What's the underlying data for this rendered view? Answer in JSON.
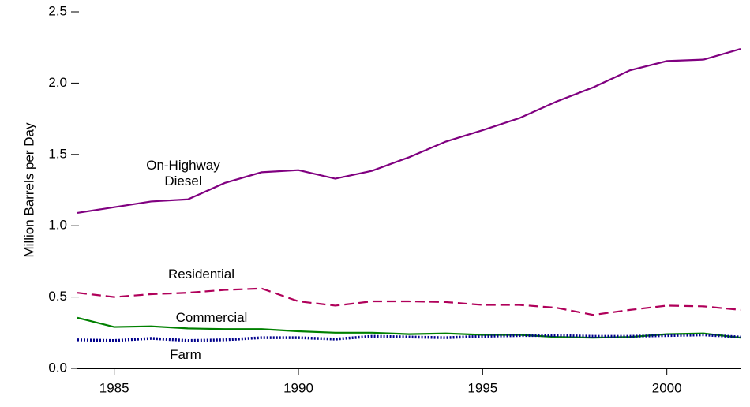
{
  "chart_data": {
    "type": "line",
    "y_label": "Million Barrels per Day",
    "x": [
      1984,
      1985,
      1986,
      1987,
      1988,
      1989,
      1990,
      1991,
      1992,
      1993,
      1994,
      1995,
      1996,
      1997,
      1998,
      1999,
      2000,
      2001,
      2002
    ],
    "xlim": [
      1984,
      2002
    ],
    "xticks": [
      1985,
      1990,
      1995,
      2000
    ],
    "ylim": [
      0,
      2.5
    ],
    "yticks": [
      {
        "value": 0,
        "label": "0.0"
      },
      0.5,
      {
        "value": 1,
        "label": "1.0"
      },
      1.5,
      {
        "value": 2,
        "label": "2.0"
      },
      2.5
    ],
    "series": [
      {
        "name": "On-Highway Diesel",
        "color": "#800080",
        "dash": "solid",
        "values": [
          1.09,
          1.13,
          1.17,
          1.185,
          1.3,
          1.375,
          1.39,
          1.33,
          1.385,
          1.48,
          1.59,
          1.67,
          1.755,
          1.87,
          1.97,
          2.09,
          2.155,
          2.165,
          2.24
        ]
      },
      {
        "name": "Residential",
        "color": "#b0005a",
        "dash": "dashed",
        "values": [
          0.53,
          0.5,
          0.52,
          0.53,
          0.55,
          0.56,
          0.47,
          0.44,
          0.47,
          0.47,
          0.465,
          0.445,
          0.445,
          0.425,
          0.375,
          0.41,
          0.44,
          0.435,
          0.41
        ]
      },
      {
        "name": "Commercial",
        "color": "#008000",
        "dash": "solid",
        "values": [
          0.355,
          0.29,
          0.295,
          0.28,
          0.275,
          0.275,
          0.26,
          0.25,
          0.25,
          0.24,
          0.245,
          0.235,
          0.235,
          0.22,
          0.215,
          0.22,
          0.24,
          0.245,
          0.215
        ]
      },
      {
        "name": "Farm",
        "color": "#00008b",
        "dash": "dotted",
        "values": [
          0.2,
          0.195,
          0.21,
          0.195,
          0.2,
          0.215,
          0.215,
          0.205,
          0.225,
          0.22,
          0.215,
          0.225,
          0.23,
          0.23,
          0.225,
          0.225,
          0.23,
          0.235,
          0.22
        ]
      }
    ]
  }
}
